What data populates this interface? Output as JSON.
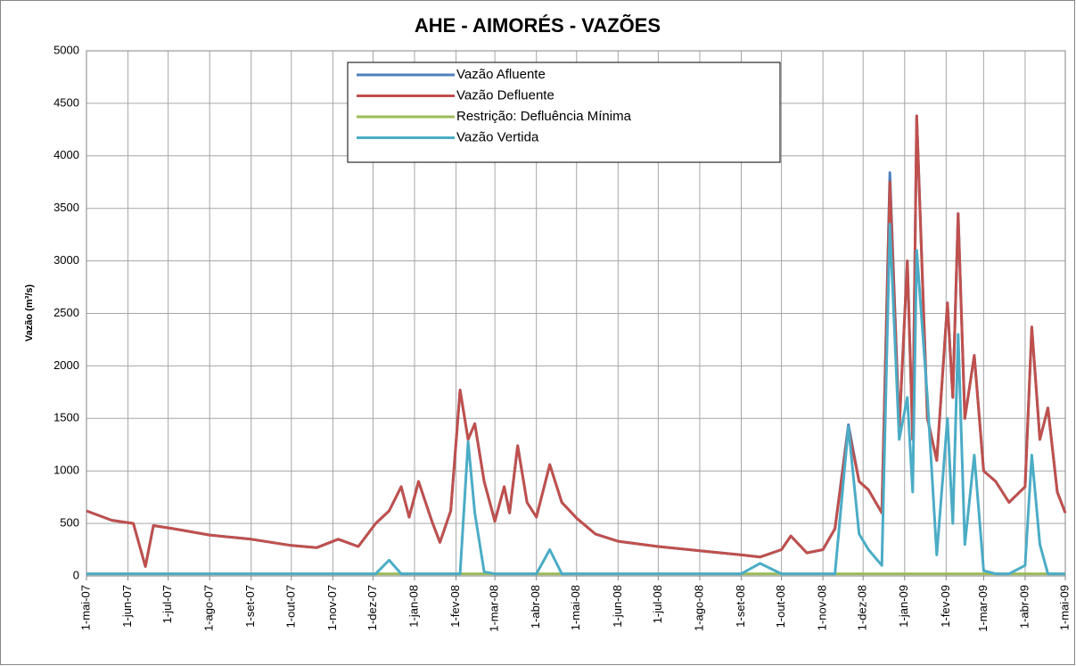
{
  "chart_data": {
    "type": "line",
    "title": "AHE - AIMORÉS - VAZÕES",
    "y_label": "Vazão (m³/s)",
    "x": [
      "2007-05-01",
      "2007-05-20",
      "2007-06-05",
      "2007-06-14",
      "2007-06-20",
      "2007-07-05",
      "2007-08-01",
      "2007-09-01",
      "2007-10-01",
      "2007-10-20",
      "2007-11-05",
      "2007-11-20",
      "2007-12-03",
      "2007-12-13",
      "2007-12-22",
      "2007-12-28",
      "2008-01-04",
      "2008-01-14",
      "2008-01-20",
      "2008-01-28",
      "2008-02-04",
      "2008-02-10",
      "2008-02-15",
      "2008-02-22",
      "2008-03-01",
      "2008-03-08",
      "2008-03-12",
      "2008-03-18",
      "2008-03-25",
      "2008-04-01",
      "2008-04-11",
      "2008-04-20",
      "2008-05-01",
      "2008-05-15",
      "2008-06-01",
      "2008-07-01",
      "2008-08-01",
      "2008-09-01",
      "2008-09-15",
      "2008-10-01",
      "2008-10-08",
      "2008-10-20",
      "2008-11-01",
      "2008-11-10",
      "2008-11-20",
      "2008-11-28",
      "2008-12-05",
      "2008-12-15",
      "2008-12-21",
      "2008-12-28",
      "2009-01-03",
      "2009-01-07",
      "2009-01-10",
      "2009-01-18",
      "2009-01-25",
      "2009-02-02",
      "2009-02-06",
      "2009-02-10",
      "2009-02-15",
      "2009-02-22",
      "2009-03-01",
      "2009-03-10",
      "2009-03-20",
      "2009-04-01",
      "2009-04-06",
      "2009-04-12",
      "2009-04-18",
      "2009-04-25",
      "2009-05-01"
    ],
    "series": [
      {
        "name": "Vazão Afluente",
        "color": "#4f81bd",
        "values": [
          620,
          530,
          500,
          90,
          480,
          450,
          390,
          350,
          290,
          270,
          350,
          280,
          500,
          620,
          850,
          560,
          900,
          520,
          320,
          620,
          1770,
          1300,
          1450,
          900,
          520,
          850,
          600,
          1240,
          700,
          560,
          1060,
          700,
          550,
          400,
          330,
          280,
          240,
          200,
          180,
          250,
          380,
          220,
          250,
          450,
          1440,
          900,
          820,
          600,
          3840,
          1400,
          3000,
          1300,
          4380,
          1500,
          1100,
          2600,
          1700,
          3450,
          1500,
          2100,
          1000,
          900,
          700,
          850,
          2370,
          1300,
          1600,
          800,
          600
        ]
      },
      {
        "name": "Vazão Defluente",
        "color": "#c0504d",
        "values": [
          620,
          530,
          500,
          90,
          480,
          450,
          390,
          350,
          290,
          270,
          350,
          280,
          500,
          620,
          850,
          560,
          900,
          520,
          320,
          620,
          1770,
          1300,
          1450,
          900,
          520,
          850,
          600,
          1240,
          700,
          560,
          1060,
          700,
          550,
          400,
          330,
          280,
          240,
          200,
          180,
          250,
          380,
          220,
          250,
          450,
          1400,
          900,
          820,
          600,
          3750,
          1400,
          3000,
          1300,
          4380,
          1500,
          1100,
          2600,
          1700,
          3450,
          1500,
          2100,
          1000,
          900,
          700,
          850,
          2370,
          1300,
          1600,
          800,
          600
        ]
      },
      {
        "name": "Restrição: Defluência Mínima",
        "color": "#9bbb59",
        "values": [
          20,
          20,
          20,
          20,
          20,
          20,
          20,
          20,
          20,
          20,
          20,
          20,
          20,
          20,
          20,
          20,
          20,
          20,
          20,
          20,
          20,
          20,
          20,
          20,
          20,
          20,
          20,
          20,
          20,
          20,
          20,
          20,
          20,
          20,
          20,
          20,
          20,
          20,
          20,
          20,
          20,
          20,
          20,
          20,
          20,
          20,
          20,
          20,
          20,
          20,
          20,
          20,
          20,
          20,
          20,
          20,
          20,
          20,
          20,
          20,
          20,
          20,
          20,
          20,
          20,
          20,
          20,
          20,
          20
        ]
      },
      {
        "name": "Vazão Vertida",
        "color": "#4bacc6",
        "values": [
          20,
          20,
          20,
          20,
          20,
          20,
          20,
          20,
          20,
          20,
          20,
          20,
          20,
          150,
          20,
          20,
          20,
          20,
          20,
          20,
          20,
          1280,
          600,
          40,
          20,
          20,
          20,
          20,
          20,
          20,
          250,
          20,
          20,
          20,
          20,
          20,
          20,
          20,
          120,
          20,
          20,
          20,
          20,
          20,
          1420,
          400,
          250,
          100,
          3350,
          1300,
          1700,
          800,
          3100,
          1700,
          200,
          1500,
          500,
          2300,
          300,
          1150,
          50,
          20,
          20,
          100,
          1150,
          300,
          20,
          20,
          20
        ]
      }
    ],
    "xlim": [
      "2007-05-01",
      "2009-05-01"
    ],
    "xticks": [
      {
        "value": "2007-05-01",
        "label": "1-mai-07"
      },
      {
        "value": "2007-06-01",
        "label": "1-jun-07"
      },
      {
        "value": "2007-07-01",
        "label": "1-jul-07"
      },
      {
        "value": "2007-08-01",
        "label": "1-ago-07"
      },
      {
        "value": "2007-09-01",
        "label": "1-set-07"
      },
      {
        "value": "2007-10-01",
        "label": "1-out-07"
      },
      {
        "value": "2007-11-01",
        "label": "1-nov-07"
      },
      {
        "value": "2007-12-01",
        "label": "1-dez-07"
      },
      {
        "value": "2008-01-01",
        "label": "1-jan-08"
      },
      {
        "value": "2008-02-01",
        "label": "1-fev-08"
      },
      {
        "value": "2008-03-01",
        "label": "1-mar-08"
      },
      {
        "value": "2008-04-01",
        "label": "1-abr-08"
      },
      {
        "value": "2008-05-01",
        "label": "1-mai-08"
      },
      {
        "value": "2008-06-01",
        "label": "1-jun-08"
      },
      {
        "value": "2008-07-01",
        "label": "1-jul-08"
      },
      {
        "value": "2008-08-01",
        "label": "1-ago-08"
      },
      {
        "value": "2008-09-01",
        "label": "1-set-08"
      },
      {
        "value": "2008-10-01",
        "label": "1-out-08"
      },
      {
        "value": "2008-11-01",
        "label": "1-nov-08"
      },
      {
        "value": "2008-12-01",
        "label": "1-dez-08"
      },
      {
        "value": "2009-01-01",
        "label": "1-jan-09"
      },
      {
        "value": "2009-02-01",
        "label": "1-fev-09"
      },
      {
        "value": "2009-03-01",
        "label": "1-mar-09"
      },
      {
        "value": "2009-04-01",
        "label": "1-abr-09"
      },
      {
        "value": "2009-05-01",
        "label": "1-mai-09"
      }
    ],
    "ylim": [
      0,
      5000
    ],
    "yticks": [
      0,
      500,
      1000,
      1500,
      2000,
      2500,
      3000,
      3500,
      4000,
      4500,
      5000
    ],
    "grid": true,
    "legend": "top-center"
  }
}
